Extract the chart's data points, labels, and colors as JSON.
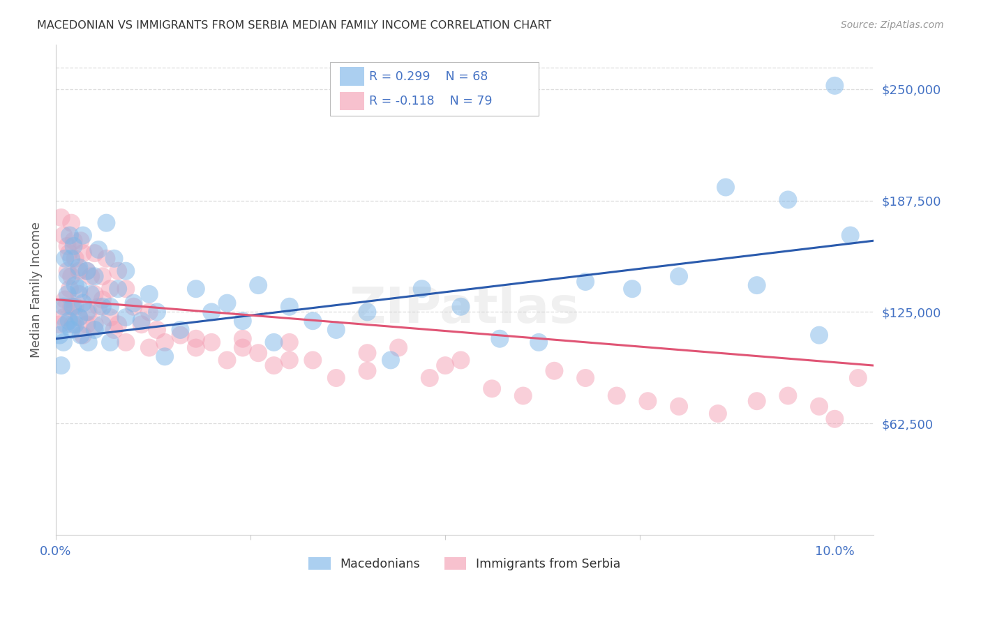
{
  "title": "MACEDONIAN VS IMMIGRANTS FROM SERBIA MEDIAN FAMILY INCOME CORRELATION CHART",
  "source": "Source: ZipAtlas.com",
  "ylabel": "Median Family Income",
  "ytick_labels": [
    "$62,500",
    "$125,000",
    "$187,500",
    "$250,000"
  ],
  "ytick_values": [
    62500,
    125000,
    187500,
    250000
  ],
  "ymin": 0,
  "ymax": 275000,
  "xmin": 0.0,
  "xmax": 0.105,
  "legend_macedonian": "Macedonians",
  "legend_serbia": "Immigrants from Serbia",
  "r_macedonian": "R = 0.299",
  "n_macedonian": "N = 68",
  "r_serbia": "R = -0.118",
  "n_serbia": "N = 79",
  "color_macedonian": "#7EB6E8",
  "color_serbia": "#F4A0B5",
  "color_line_macedonian": "#2B5BAD",
  "color_line_serbia": "#E05575",
  "color_title": "#333333",
  "color_axis_labels": "#4472C4",
  "color_source": "#999999",
  "color_grid": "#DDDDDD",
  "watermark": "ZIPatlas",
  "macedonian_x": [
    0.0005,
    0.0007,
    0.001,
    0.001,
    0.0012,
    0.0013,
    0.0015,
    0.0015,
    0.0017,
    0.0018,
    0.002,
    0.002,
    0.0022,
    0.0023,
    0.0025,
    0.0025,
    0.003,
    0.003,
    0.003,
    0.0032,
    0.0035,
    0.0035,
    0.004,
    0.004,
    0.0042,
    0.0045,
    0.005,
    0.005,
    0.0055,
    0.006,
    0.006,
    0.0065,
    0.007,
    0.007,
    0.0075,
    0.008,
    0.009,
    0.009,
    0.01,
    0.011,
    0.012,
    0.013,
    0.014,
    0.016,
    0.018,
    0.02,
    0.022,
    0.024,
    0.026,
    0.028,
    0.03,
    0.033,
    0.036,
    0.04,
    0.043,
    0.047,
    0.052,
    0.057,
    0.062,
    0.068,
    0.074,
    0.08,
    0.086,
    0.09,
    0.094,
    0.098,
    0.1,
    0.102
  ],
  "macedonian_y": [
    112000,
    95000,
    128000,
    108000,
    155000,
    118000,
    135000,
    145000,
    120000,
    168000,
    115000,
    155000,
    128000,
    162000,
    118000,
    140000,
    122000,
    138000,
    150000,
    112000,
    168000,
    130000,
    125000,
    148000,
    108000,
    135000,
    145000,
    115000,
    160000,
    128000,
    118000,
    175000,
    128000,
    108000,
    155000,
    138000,
    122000,
    148000,
    130000,
    120000,
    135000,
    125000,
    100000,
    115000,
    138000,
    125000,
    130000,
    120000,
    140000,
    108000,
    128000,
    120000,
    115000,
    125000,
    98000,
    138000,
    128000,
    110000,
    108000,
    142000,
    138000,
    145000,
    195000,
    140000,
    188000,
    112000,
    252000,
    168000
  ],
  "serbia_x": [
    0.0005,
    0.0007,
    0.001,
    0.001,
    0.0012,
    0.0013,
    0.0015,
    0.0015,
    0.0017,
    0.0018,
    0.002,
    0.002,
    0.0022,
    0.0023,
    0.0025,
    0.0025,
    0.003,
    0.003,
    0.003,
    0.0032,
    0.0035,
    0.0035,
    0.004,
    0.004,
    0.0042,
    0.0045,
    0.005,
    0.005,
    0.0055,
    0.006,
    0.006,
    0.0065,
    0.007,
    0.007,
    0.0075,
    0.008,
    0.009,
    0.009,
    0.01,
    0.011,
    0.012,
    0.013,
    0.014,
    0.016,
    0.018,
    0.02,
    0.022,
    0.024,
    0.026,
    0.028,
    0.03,
    0.033,
    0.036,
    0.04,
    0.044,
    0.048,
    0.052,
    0.056,
    0.06,
    0.064,
    0.068,
    0.072,
    0.076,
    0.08,
    0.085,
    0.09,
    0.094,
    0.098,
    0.1,
    0.103,
    0.002,
    0.005,
    0.008,
    0.012,
    0.018,
    0.024,
    0.03,
    0.04,
    0.05
  ],
  "serbia_y": [
    118000,
    178000,
    122000,
    168000,
    132000,
    128000,
    162000,
    148000,
    158000,
    138000,
    145000,
    175000,
    118000,
    165000,
    128000,
    155000,
    122000,
    148000,
    135000,
    165000,
    112000,
    158000,
    118000,
    148000,
    125000,
    145000,
    118000,
    158000,
    128000,
    145000,
    132000,
    155000,
    122000,
    138000,
    115000,
    148000,
    108000,
    138000,
    128000,
    118000,
    105000,
    115000,
    108000,
    112000,
    105000,
    108000,
    98000,
    110000,
    102000,
    95000,
    108000,
    98000,
    88000,
    92000,
    105000,
    88000,
    98000,
    82000,
    78000,
    92000,
    88000,
    78000,
    75000,
    72000,
    68000,
    75000,
    78000,
    72000,
    65000,
    88000,
    128000,
    135000,
    118000,
    125000,
    110000,
    105000,
    98000,
    102000,
    95000
  ]
}
